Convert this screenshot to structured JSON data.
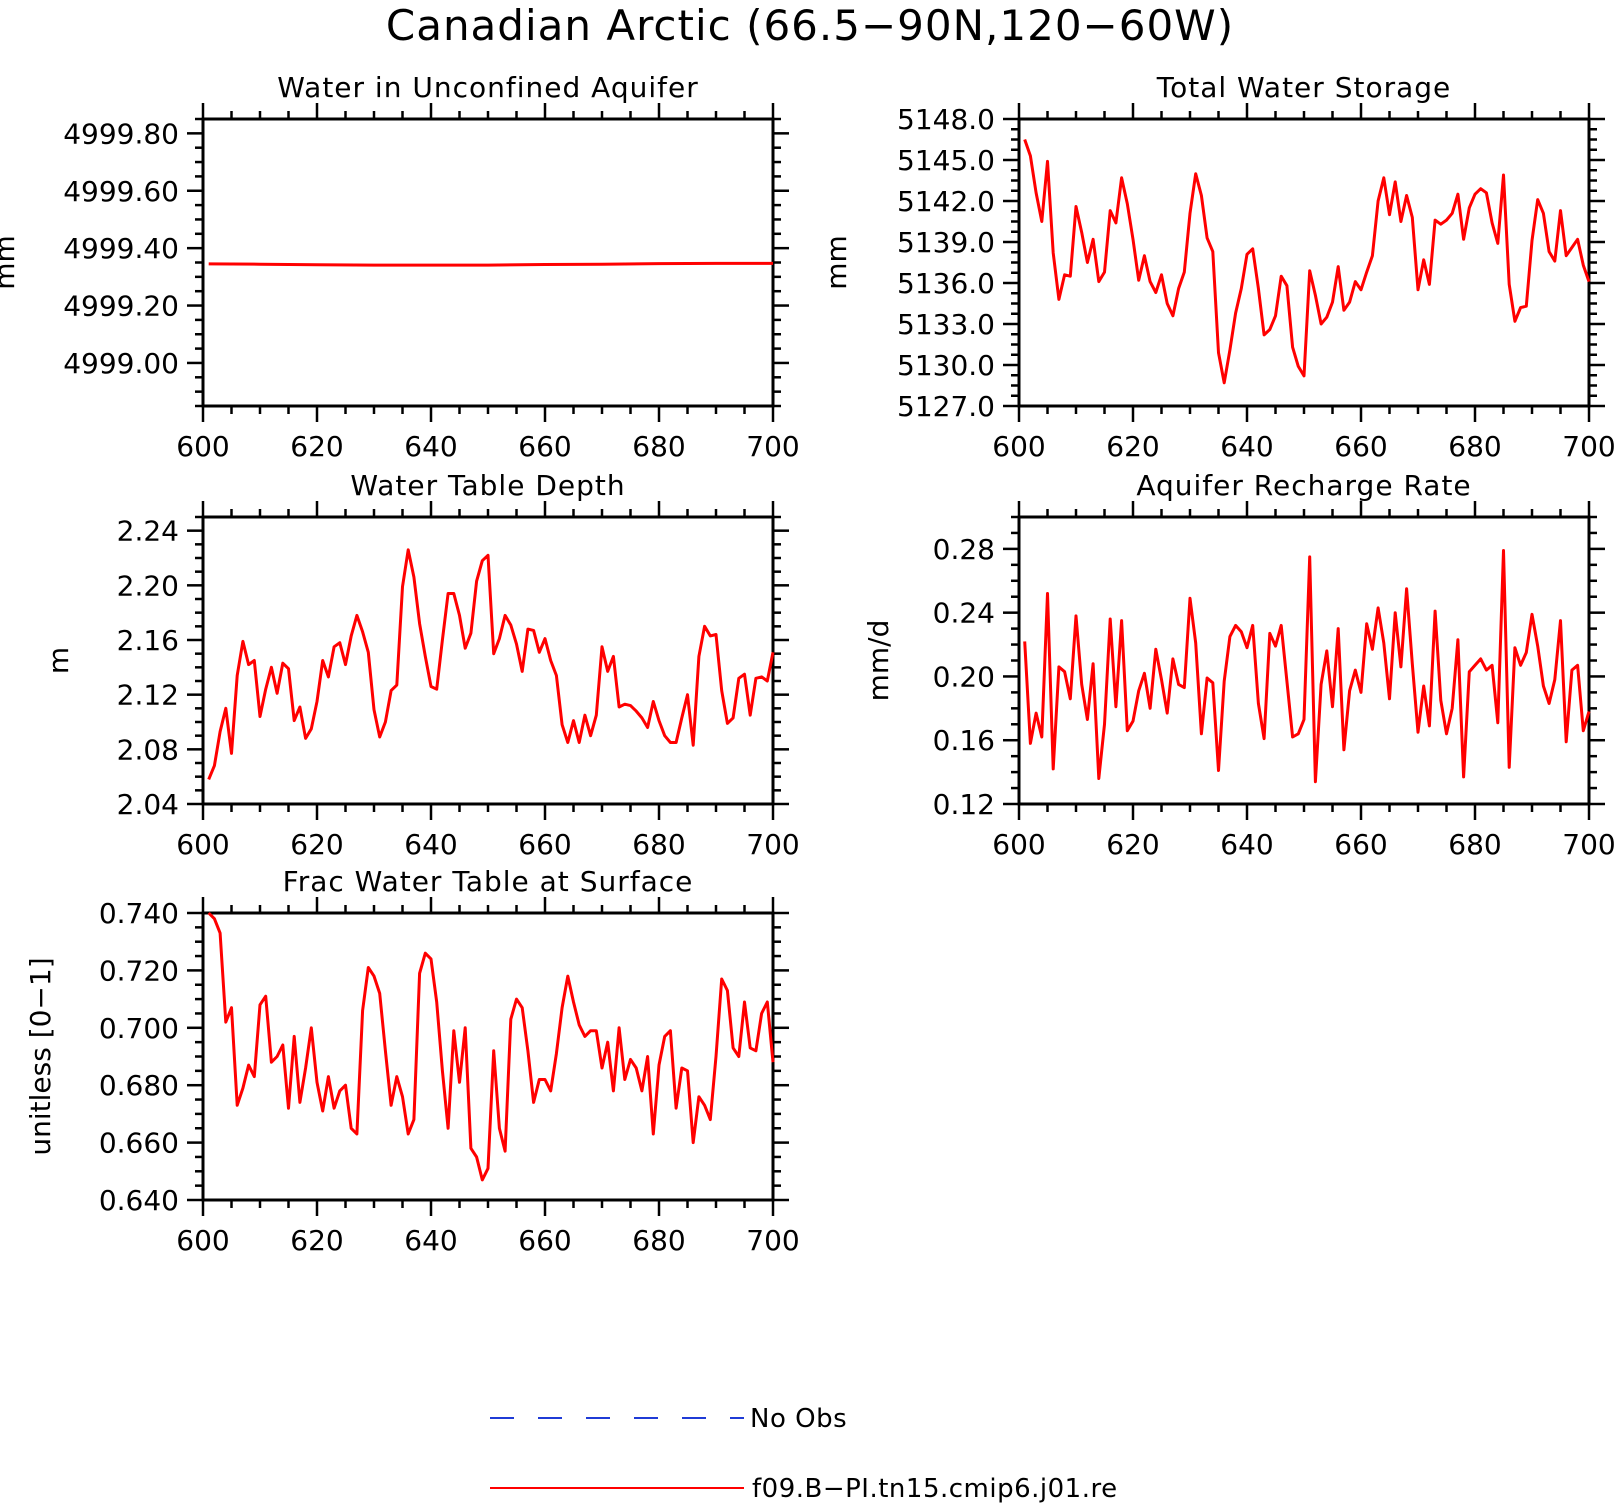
{
  "figure_title": "Canadian Arctic (66.5−90N,120−60W)",
  "legend": [
    {
      "label": "No Obs",
      "color": "#1f3bd6",
      "style": "dashed"
    },
    {
      "label": "f09.B−PI.tn15.cmip6.j01.re",
      "color": "#ff0000",
      "style": "solid"
    }
  ],
  "chart_data": [
    {
      "type": "line",
      "title": "Water in Unconfined Aquifer",
      "xlabel": "",
      "ylabel": "mm",
      "xlim": [
        600,
        700
      ],
      "ylim": [
        4998.85,
        4999.85
      ],
      "xticks": [
        600,
        620,
        640,
        660,
        680,
        700
      ],
      "xtick_labels": [
        "600",
        "620",
        "640",
        "660",
        "680",
        "700"
      ],
      "yticks": [
        4999.0,
        4999.2,
        4999.4,
        4999.6,
        4999.8
      ],
      "ytick_labels": [
        "4999.00",
        "4999.20",
        "4999.40",
        "4999.60",
        "4999.80"
      ],
      "grid": false,
      "series": [
        {
          "color": "#ff0000",
          "x": [
            601,
            610,
            620,
            630,
            640,
            650,
            660,
            670,
            680,
            690,
            700
          ],
          "y": [
            4999.345,
            4999.344,
            4999.342,
            4999.341,
            4999.341,
            4999.341,
            4999.343,
            4999.344,
            4999.346,
            4999.347,
            4999.347
          ]
        }
      ]
    },
    {
      "type": "line",
      "title": "Total Water Storage",
      "xlabel": "",
      "ylabel": "mm",
      "xlim": [
        600,
        700
      ],
      "ylim": [
        5127,
        5148
      ],
      "xticks": [
        600,
        620,
        640,
        660,
        680,
        700
      ],
      "xtick_labels": [
        "600",
        "620",
        "640",
        "660",
        "680",
        "700"
      ],
      "yticks": [
        5127,
        5130,
        5133,
        5136,
        5139,
        5142,
        5145,
        5148
      ],
      "ytick_labels": [
        "5127.0",
        "5130.0",
        "5133.0",
        "5136.0",
        "5139.0",
        "5142.0",
        "5145.0",
        "5148.0"
      ],
      "grid": false,
      "series": [
        {
          "color": "#ff0000",
          "x": [
            601,
            602,
            603,
            604,
            605,
            606,
            607,
            608,
            609,
            610,
            611,
            612,
            613,
            614,
            615,
            616,
            617,
            618,
            619,
            620,
            621,
            622,
            623,
            624,
            625,
            626,
            627,
            628,
            629,
            630,
            631,
            632,
            633,
            634,
            635,
            636,
            637,
            638,
            639,
            640,
            641,
            642,
            643,
            644,
            645,
            646,
            647,
            648,
            649,
            650,
            651,
            652,
            653,
            654,
            655,
            656,
            657,
            658,
            659,
            660,
            661,
            662,
            663,
            664,
            665,
            666,
            667,
            668,
            669,
            670,
            671,
            672,
            673,
            674,
            675,
            676,
            677,
            678,
            679,
            680,
            681,
            682,
            683,
            684,
            685,
            686,
            687,
            688,
            689,
            690,
            691,
            692,
            693,
            694,
            695,
            696,
            697,
            698,
            699,
            700
          ],
          "y": [
            5146.5,
            5145.3,
            5142.6,
            5140.5,
            5144.9,
            5138.2,
            5134.8,
            5136.6,
            5136.5,
            5141.6,
            5139.7,
            5137.5,
            5139.2,
            5136.1,
            5136.8,
            5141.3,
            5140.4,
            5143.7,
            5141.8,
            5139.2,
            5136.2,
            5138.0,
            5136.1,
            5135.3,
            5136.6,
            5134.5,
            5133.6,
            5135.6,
            5136.8,
            5141.1,
            5144.0,
            5142.4,
            5139.3,
            5138.3,
            5130.9,
            5128.7,
            5131.1,
            5133.8,
            5135.6,
            5138.1,
            5138.5,
            5135.6,
            5132.2,
            5132.6,
            5133.6,
            5136.5,
            5135.8,
            5131.3,
            5129.9,
            5129.2,
            5136.9,
            5135.1,
            5133.0,
            5133.5,
            5134.6,
            5137.2,
            5134.0,
            5134.6,
            5136.1,
            5135.5,
            5136.8,
            5138.0,
            5142.0,
            5143.7,
            5141.0,
            5143.4,
            5140.5,
            5142.4,
            5140.8,
            5135.5,
            5137.7,
            5135.9,
            5140.6,
            5140.3,
            5140.6,
            5141.1,
            5142.5,
            5139.2,
            5141.5,
            5142.5,
            5142.9,
            5142.6,
            5140.4,
            5138.9,
            5143.9,
            5135.9,
            5133.2,
            5134.2,
            5134.3,
            5139.1,
            5142.1,
            5141.1,
            5138.3,
            5137.6,
            5141.3,
            5138.0,
            5138.6,
            5139.2,
            5137.3,
            5136.1
          ]
        }
      ]
    },
    {
      "type": "line",
      "title": "Water Table Depth",
      "xlabel": "",
      "ylabel": "m",
      "xlim": [
        600,
        700
      ],
      "ylim": [
        2.04,
        2.25
      ],
      "xticks": [
        600,
        620,
        640,
        660,
        680,
        700
      ],
      "xtick_labels": [
        "600",
        "620",
        "640",
        "660",
        "680",
        "700"
      ],
      "yticks": [
        2.04,
        2.08,
        2.12,
        2.16,
        2.2,
        2.24
      ],
      "ytick_labels": [
        "2.04",
        "2.08",
        "2.12",
        "2.16",
        "2.20",
        "2.24"
      ],
      "grid": false,
      "series": [
        {
          "color": "#ff0000",
          "x": [
            601,
            602,
            603,
            604,
            605,
            606,
            607,
            608,
            609,
            610,
            611,
            612,
            613,
            614,
            615,
            616,
            617,
            618,
            619,
            620,
            621,
            622,
            623,
            624,
            625,
            626,
            627,
            628,
            629,
            630,
            631,
            632,
            633,
            634,
            635,
            636,
            637,
            638,
            639,
            640,
            641,
            642,
            643,
            644,
            645,
            646,
            647,
            648,
            649,
            650,
            651,
            652,
            653,
            654,
            655,
            656,
            657,
            658,
            659,
            660,
            661,
            662,
            663,
            664,
            665,
            666,
            667,
            668,
            669,
            670,
            671,
            672,
            673,
            674,
            675,
            676,
            677,
            678,
            679,
            680,
            681,
            682,
            683,
            684,
            685,
            686,
            687,
            688,
            689,
            690,
            691,
            692,
            693,
            694,
            695,
            696,
            697,
            698,
            699,
            700
          ],
          "y": [
            2.058,
            2.068,
            2.093,
            2.11,
            2.077,
            2.134,
            2.159,
            2.142,
            2.145,
            2.104,
            2.124,
            2.14,
            2.121,
            2.143,
            2.139,
            2.101,
            2.111,
            2.088,
            2.095,
            2.115,
            2.145,
            2.133,
            2.155,
            2.158,
            2.142,
            2.163,
            2.178,
            2.166,
            2.151,
            2.109,
            2.089,
            2.1,
            2.123,
            2.127,
            2.199,
            2.226,
            2.206,
            2.172,
            2.148,
            2.126,
            2.124,
            2.16,
            2.194,
            2.194,
            2.178,
            2.154,
            2.165,
            2.203,
            2.218,
            2.222,
            2.15,
            2.161,
            2.178,
            2.171,
            2.157,
            2.137,
            2.168,
            2.167,
            2.151,
            2.161,
            2.145,
            2.134,
            2.098,
            2.085,
            2.101,
            2.085,
            2.105,
            2.09,
            2.105,
            2.155,
            2.137,
            2.148,
            2.111,
            2.113,
            2.112,
            2.108,
            2.103,
            2.096,
            2.115,
            2.101,
            2.09,
            2.085,
            2.085,
            2.103,
            2.12,
            2.083,
            2.148,
            2.17,
            2.163,
            2.164,
            2.123,
            2.099,
            2.103,
            2.132,
            2.135,
            2.105,
            2.132,
            2.133,
            2.13,
            2.151
          ]
        }
      ]
    },
    {
      "type": "line",
      "title": "Aquifer Recharge Rate",
      "xlabel": "",
      "ylabel": "mm/d",
      "xlim": [
        600,
        700
      ],
      "ylim": [
        0.12,
        0.3
      ],
      "xticks": [
        600,
        620,
        640,
        660,
        680,
        700
      ],
      "xtick_labels": [
        "600",
        "620",
        "640",
        "660",
        "680",
        "700"
      ],
      "yticks": [
        0.12,
        0.16,
        0.2,
        0.24,
        0.28
      ],
      "ytick_labels": [
        "0.12",
        "0.16",
        "0.20",
        "0.24",
        "0.28"
      ],
      "grid": false,
      "series": [
        {
          "color": "#ff0000",
          "x": [
            601,
            602,
            603,
            604,
            605,
            606,
            607,
            608,
            609,
            610,
            611,
            612,
            613,
            614,
            615,
            616,
            617,
            618,
            619,
            620,
            621,
            622,
            623,
            624,
            625,
            626,
            627,
            628,
            629,
            630,
            631,
            632,
            633,
            634,
            635,
            636,
            637,
            638,
            639,
            640,
            641,
            642,
            643,
            644,
            645,
            646,
            647,
            648,
            649,
            650,
            651,
            652,
            653,
            654,
            655,
            656,
            657,
            658,
            659,
            660,
            661,
            662,
            663,
            664,
            665,
            666,
            667,
            668,
            669,
            670,
            671,
            672,
            673,
            674,
            675,
            676,
            677,
            678,
            679,
            680,
            681,
            682,
            683,
            684,
            685,
            686,
            687,
            688,
            689,
            690,
            691,
            692,
            693,
            694,
            695,
            696,
            697,
            698,
            699,
            700
          ],
          "y": [
            0.222,
            0.158,
            0.177,
            0.162,
            0.252,
            0.142,
            0.206,
            0.203,
            0.186,
            0.238,
            0.195,
            0.173,
            0.208,
            0.136,
            0.17,
            0.236,
            0.181,
            0.235,
            0.166,
            0.172,
            0.191,
            0.202,
            0.18,
            0.217,
            0.198,
            0.177,
            0.211,
            0.195,
            0.193,
            0.249,
            0.221,
            0.164,
            0.199,
            0.196,
            0.141,
            0.197,
            0.225,
            0.232,
            0.228,
            0.218,
            0.232,
            0.183,
            0.161,
            0.227,
            0.219,
            0.232,
            0.197,
            0.162,
            0.164,
            0.173,
            0.275,
            0.134,
            0.195,
            0.216,
            0.181,
            0.23,
            0.154,
            0.191,
            0.204,
            0.19,
            0.233,
            0.217,
            0.243,
            0.221,
            0.186,
            0.24,
            0.206,
            0.255,
            0.208,
            0.165,
            0.194,
            0.169,
            0.241,
            0.185,
            0.164,
            0.18,
            0.223,
            0.137,
            0.203,
            0.207,
            0.211,
            0.204,
            0.207,
            0.171,
            0.279,
            0.143,
            0.218,
            0.207,
            0.215,
            0.239,
            0.219,
            0.194,
            0.183,
            0.198,
            0.235,
            0.159,
            0.204,
            0.207,
            0.166,
            0.178
          ]
        }
      ]
    },
    {
      "type": "line",
      "title": "Frac Water Table at Surface",
      "xlabel": "",
      "ylabel": "unitless [0−1]",
      "xlim": [
        600,
        700
      ],
      "ylim": [
        0.64,
        0.74
      ],
      "xticks": [
        600,
        620,
        640,
        660,
        680,
        700
      ],
      "xtick_labels": [
        "600",
        "620",
        "640",
        "660",
        "680",
        "700"
      ],
      "yticks": [
        0.64,
        0.66,
        0.68,
        0.7,
        0.72,
        0.74
      ],
      "ytick_labels": [
        "0.640",
        "0.660",
        "0.680",
        "0.700",
        "0.720",
        "0.740"
      ],
      "grid": false,
      "series": [
        {
          "color": "#ff0000",
          "x": [
            601,
            602,
            603,
            604,
            605,
            606,
            607,
            608,
            609,
            610,
            611,
            612,
            613,
            614,
            615,
            616,
            617,
            618,
            619,
            620,
            621,
            622,
            623,
            624,
            625,
            626,
            627,
            628,
            629,
            630,
            631,
            632,
            633,
            634,
            635,
            636,
            637,
            638,
            639,
            640,
            641,
            642,
            643,
            644,
            645,
            646,
            647,
            648,
            649,
            650,
            651,
            652,
            653,
            654,
            655,
            656,
            657,
            658,
            659,
            660,
            661,
            662,
            663,
            664,
            665,
            666,
            667,
            668,
            669,
            670,
            671,
            672,
            673,
            674,
            675,
            676,
            677,
            678,
            679,
            680,
            681,
            682,
            683,
            684,
            685,
            686,
            687,
            688,
            689,
            690,
            691,
            692,
            693,
            694,
            695,
            696,
            697,
            698,
            699,
            700
          ],
          "y": [
            0.74,
            0.738,
            0.733,
            0.702,
            0.707,
            0.673,
            0.679,
            0.687,
            0.683,
            0.708,
            0.711,
            0.688,
            0.69,
            0.694,
            0.672,
            0.697,
            0.674,
            0.686,
            0.7,
            0.681,
            0.671,
            0.683,
            0.672,
            0.678,
            0.68,
            0.665,
            0.663,
            0.706,
            0.721,
            0.718,
            0.712,
            0.692,
            0.673,
            0.683,
            0.676,
            0.663,
            0.668,
            0.719,
            0.726,
            0.724,
            0.709,
            0.685,
            0.665,
            0.699,
            0.681,
            0.7,
            0.658,
            0.655,
            0.647,
            0.651,
            0.692,
            0.665,
            0.657,
            0.703,
            0.71,
            0.707,
            0.692,
            0.674,
            0.682,
            0.682,
            0.678,
            0.691,
            0.707,
            0.718,
            0.709,
            0.701,
            0.697,
            0.699,
            0.699,
            0.686,
            0.695,
            0.678,
            0.7,
            0.682,
            0.689,
            0.686,
            0.678,
            0.69,
            0.663,
            0.687,
            0.697,
            0.699,
            0.672,
            0.686,
            0.685,
            0.66,
            0.676,
            0.673,
            0.668,
            0.69,
            0.717,
            0.713,
            0.693,
            0.69,
            0.709,
            0.693,
            0.692,
            0.705,
            0.709,
            0.688
          ]
        }
      ]
    }
  ]
}
